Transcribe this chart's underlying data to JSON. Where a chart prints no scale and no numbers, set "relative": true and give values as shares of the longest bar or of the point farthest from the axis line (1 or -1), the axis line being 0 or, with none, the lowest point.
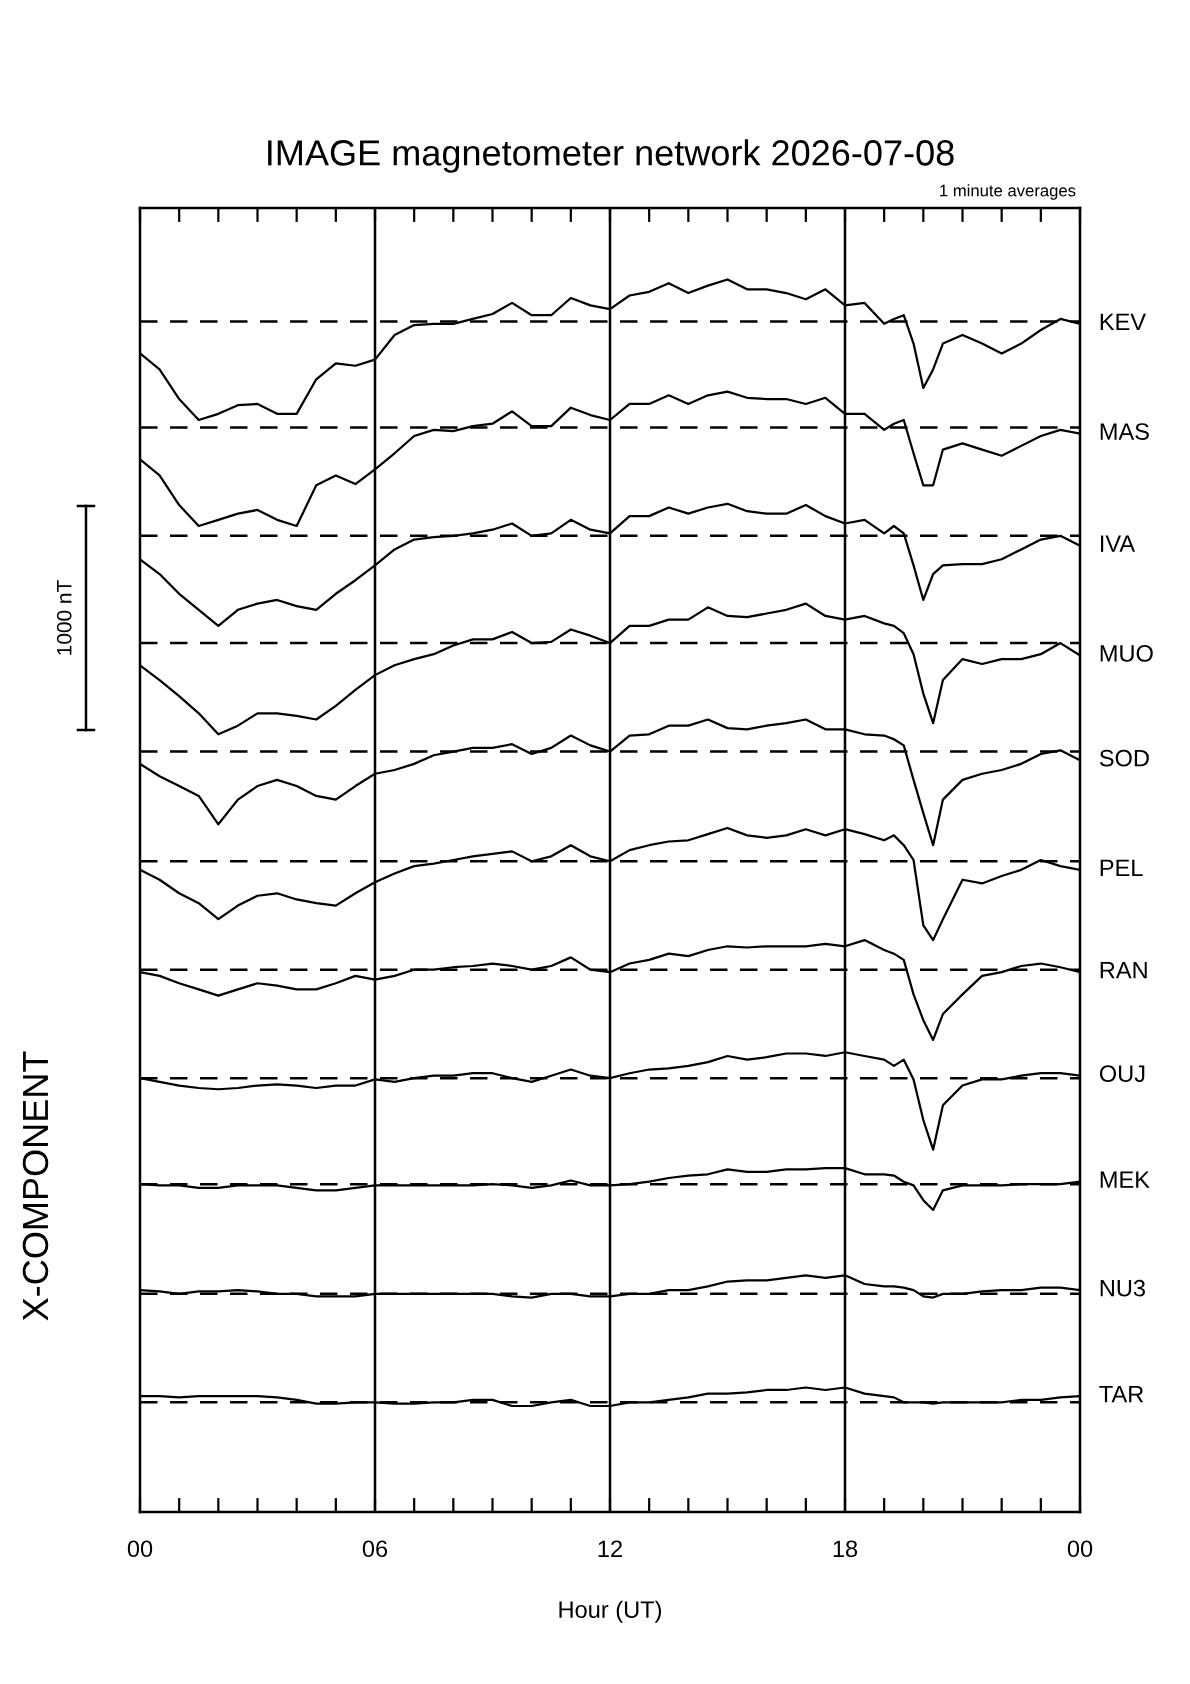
{
  "chart_data": {
    "type": "line",
    "relative": true,
    "title": "IMAGE magnetometer network 2026-07-08",
    "xlabel": "Hour (UT)",
    "ylabel": "X-COMPONENT",
    "annotations": [
      "1 minute averages",
      "1000 nT"
    ],
    "x": [
      0,
      0.5,
      1,
      1.5,
      2,
      2.5,
      3,
      3.5,
      4,
      4.5,
      5,
      5.5,
      6,
      6.5,
      7,
      7.5,
      8,
      8.5,
      9,
      9.5,
      10,
      10.5,
      11,
      11.5,
      12,
      12.5,
      13,
      13.5,
      14,
      14.5,
      15,
      15.5,
      16,
      16.5,
      17,
      17.5,
      18,
      18.5,
      19,
      19.25,
      19.5,
      19.75,
      20,
      20.25,
      20.5,
      21,
      21.5,
      22,
      22.5,
      23,
      23.5,
      24
    ],
    "xlim": [
      0,
      24
    ],
    "xticks": [
      {
        "value": 0,
        "label": "00"
      },
      {
        "value": 1,
        "label": null
      },
      {
        "value": 2,
        "label": null
      },
      {
        "value": 3,
        "label": null
      },
      {
        "value": 4,
        "label": null
      },
      {
        "value": 5,
        "label": null
      },
      {
        "value": 6,
        "label": "06"
      },
      {
        "value": 7,
        "label": null
      },
      {
        "value": 8,
        "label": null
      },
      {
        "value": 9,
        "label": null
      },
      {
        "value": 10,
        "label": null
      },
      {
        "value": 11,
        "label": null
      },
      {
        "value": 12,
        "label": "12"
      },
      {
        "value": 13,
        "label": null
      },
      {
        "value": 14,
        "label": null
      },
      {
        "value": 15,
        "label": null
      },
      {
        "value": 16,
        "label": null
      },
      {
        "value": 17,
        "label": null
      },
      {
        "value": 18,
        "label": "18"
      },
      {
        "value": 19,
        "label": null
      },
      {
        "value": 20,
        "label": null
      },
      {
        "value": 21,
        "label": null
      },
      {
        "value": 22,
        "label": null
      },
      {
        "value": 23,
        "label": null
      },
      {
        "value": 24,
        "label": "00"
      }
    ],
    "tick_labels": "x",
    "grid": false,
    "legend": false,
    "marker": "none",
    "line_style": "solid",
    "series": [
      {
        "name": "KEV",
        "color": "#000000",
        "values": [
          0.94,
          0.927,
          0.903,
          0.886,
          0.891,
          0.898,
          0.899,
          0.891,
          0.891,
          0.919,
          0.932,
          0.93,
          0.935,
          0.955,
          0.963,
          0.964,
          0.964,
          0.968,
          0.972,
          0.981,
          0.971,
          0.971,
          0.985,
          0.979,
          0.976,
          0.987,
          0.99,
          0.997,
          0.989,
          0.995,
          1.0,
          0.992,
          0.992,
          0.989,
          0.984,
          0.992,
          0.979,
          0.981,
          0.964,
          0.968,
          0.971,
          0.948,
          0.912,
          0.927,
          0.948,
          0.955,
          0.948,
          0.94,
          0.948,
          0.959,
          0.968,
          0.964
        ]
      },
      {
        "name": "MAS",
        "color": "#000000",
        "values": [
          0.854,
          0.841,
          0.817,
          0.8,
          0.805,
          0.81,
          0.813,
          0.805,
          0.8,
          0.833,
          0.841,
          0.834,
          0.846,
          0.859,
          0.873,
          0.878,
          0.877,
          0.881,
          0.883,
          0.893,
          0.881,
          0.881,
          0.896,
          0.89,
          0.886,
          0.899,
          0.899,
          0.906,
          0.899,
          0.906,
          0.909,
          0.904,
          0.903,
          0.903,
          0.899,
          0.904,
          0.891,
          0.891,
          0.878,
          0.883,
          0.886,
          0.859,
          0.833,
          0.833,
          0.862,
          0.867,
          0.862,
          0.857,
          0.865,
          0.873,
          0.878,
          0.875
        ]
      },
      {
        "name": "IVA",
        "color": "#000000",
        "values": [
          0.773,
          0.761,
          0.745,
          0.732,
          0.719,
          0.732,
          0.737,
          0.74,
          0.735,
          0.732,
          0.745,
          0.756,
          0.768,
          0.781,
          0.789,
          0.791,
          0.792,
          0.794,
          0.797,
          0.802,
          0.792,
          0.794,
          0.805,
          0.797,
          0.794,
          0.808,
          0.808,
          0.815,
          0.81,
          0.815,
          0.818,
          0.812,
          0.81,
          0.81,
          0.817,
          0.808,
          0.802,
          0.805,
          0.794,
          0.8,
          0.794,
          0.768,
          0.74,
          0.761,
          0.768,
          0.769,
          0.769,
          0.773,
          0.781,
          0.789,
          0.792,
          0.784
        ]
      },
      {
        "name": "MUO",
        "color": "#000000",
        "values": [
          0.687,
          0.675,
          0.662,
          0.648,
          0.631,
          0.638,
          0.648,
          0.648,
          0.646,
          0.643,
          0.654,
          0.667,
          0.679,
          0.687,
          0.692,
          0.696,
          0.703,
          0.708,
          0.708,
          0.714,
          0.705,
          0.706,
          0.716,
          0.711,
          0.705,
          0.719,
          0.719,
          0.724,
          0.724,
          0.734,
          0.727,
          0.726,
          0.729,
          0.732,
          0.737,
          0.727,
          0.724,
          0.727,
          0.721,
          0.719,
          0.713,
          0.696,
          0.664,
          0.64,
          0.675,
          0.692,
          0.688,
          0.692,
          0.692,
          0.696,
          0.705,
          0.695
        ]
      },
      {
        "name": "SOD",
        "color": "#000000",
        "values": [
          0.607,
          0.597,
          0.589,
          0.581,
          0.558,
          0.578,
          0.589,
          0.594,
          0.589,
          0.581,
          0.578,
          0.589,
          0.599,
          0.602,
          0.607,
          0.614,
          0.617,
          0.62,
          0.62,
          0.623,
          0.615,
          0.62,
          0.63,
          0.622,
          0.617,
          0.63,
          0.631,
          0.638,
          0.638,
          0.643,
          0.636,
          0.635,
          0.638,
          0.64,
          0.643,
          0.635,
          0.635,
          0.631,
          0.63,
          0.627,
          0.622,
          0.594,
          0.567,
          0.541,
          0.578,
          0.594,
          0.599,
          0.602,
          0.607,
          0.615,
          0.618,
          0.61
        ]
      },
      {
        "name": "PEL",
        "color": "#000000",
        "values": [
          0.521,
          0.513,
          0.502,
          0.494,
          0.481,
          0.492,
          0.5,
          0.502,
          0.497,
          0.494,
          0.492,
          0.502,
          0.511,
          0.518,
          0.524,
          0.526,
          0.529,
          0.532,
          0.534,
          0.536,
          0.528,
          0.532,
          0.541,
          0.532,
          0.528,
          0.537,
          0.541,
          0.544,
          0.545,
          0.55,
          0.555,
          0.549,
          0.547,
          0.549,
          0.554,
          0.549,
          0.554,
          0.55,
          0.545,
          0.549,
          0.541,
          0.529,
          0.476,
          0.464,
          0.481,
          0.513,
          0.51,
          0.516,
          0.521,
          0.529,
          0.524,
          0.521
        ]
      },
      {
        "name": "RAN",
        "color": "#000000",
        "values": [
          0.438,
          0.435,
          0.429,
          0.424,
          0.419,
          0.424,
          0.429,
          0.427,
          0.424,
          0.424,
          0.429,
          0.435,
          0.432,
          0.435,
          0.44,
          0.44,
          0.442,
          0.443,
          0.445,
          0.443,
          0.44,
          0.443,
          0.45,
          0.44,
          0.438,
          0.445,
          0.448,
          0.453,
          0.451,
          0.456,
          0.459,
          0.458,
          0.459,
          0.459,
          0.459,
          0.461,
          0.459,
          0.464,
          0.456,
          0.453,
          0.448,
          0.42,
          0.399,
          0.383,
          0.404,
          0.42,
          0.435,
          0.438,
          0.443,
          0.445,
          0.442,
          0.438
        ]
      },
      {
        "name": "OUJ",
        "color": "#000000",
        "values": [
          0.352,
          0.349,
          0.346,
          0.344,
          0.343,
          0.344,
          0.346,
          0.347,
          0.346,
          0.344,
          0.346,
          0.346,
          0.351,
          0.349,
          0.352,
          0.354,
          0.354,
          0.356,
          0.356,
          0.352,
          0.349,
          0.354,
          0.359,
          0.354,
          0.352,
          0.356,
          0.359,
          0.36,
          0.362,
          0.365,
          0.37,
          0.367,
          0.369,
          0.372,
          0.372,
          0.37,
          0.373,
          0.37,
          0.367,
          0.362,
          0.367,
          0.351,
          0.318,
          0.294,
          0.33,
          0.346,
          0.351,
          0.351,
          0.354,
          0.356,
          0.356,
          0.354
        ]
      },
      {
        "name": "MEK",
        "color": "#000000",
        "values": [
          0.266,
          0.265,
          0.265,
          0.263,
          0.263,
          0.265,
          0.265,
          0.265,
          0.263,
          0.261,
          0.261,
          0.263,
          0.265,
          0.265,
          0.265,
          0.265,
          0.265,
          0.265,
          0.266,
          0.265,
          0.263,
          0.265,
          0.269,
          0.265,
          0.265,
          0.266,
          0.268,
          0.271,
          0.273,
          0.274,
          0.278,
          0.276,
          0.276,
          0.278,
          0.278,
          0.279,
          0.279,
          0.274,
          0.274,
          0.273,
          0.268,
          0.265,
          0.253,
          0.245,
          0.261,
          0.265,
          0.265,
          0.265,
          0.266,
          0.266,
          0.266,
          0.268
        ]
      },
      {
        "name": "NU3",
        "color": "#000000",
        "values": [
          0.18,
          0.179,
          0.177,
          0.179,
          0.179,
          0.18,
          0.179,
          0.177,
          0.177,
          0.175,
          0.175,
          0.175,
          0.177,
          0.177,
          0.177,
          0.177,
          0.177,
          0.177,
          0.177,
          0.175,
          0.174,
          0.177,
          0.177,
          0.175,
          0.175,
          0.177,
          0.177,
          0.18,
          0.18,
          0.183,
          0.187,
          0.188,
          0.188,
          0.19,
          0.192,
          0.19,
          0.192,
          0.185,
          0.183,
          0.183,
          0.182,
          0.18,
          0.175,
          0.174,
          0.177,
          0.177,
          0.179,
          0.18,
          0.18,
          0.182,
          0.182,
          0.18
        ]
      },
      {
        "name": "TAR",
        "color": "#000000",
        "values": [
          0.094,
          0.094,
          0.093,
          0.094,
          0.094,
          0.094,
          0.094,
          0.093,
          0.091,
          0.088,
          0.088,
          0.089,
          0.089,
          0.088,
          0.088,
          0.089,
          0.089,
          0.091,
          0.091,
          0.086,
          0.086,
          0.089,
          0.091,
          0.086,
          0.086,
          0.089,
          0.089,
          0.091,
          0.093,
          0.096,
          0.096,
          0.097,
          0.099,
          0.099,
          0.101,
          0.099,
          0.101,
          0.096,
          0.094,
          0.093,
          0.089,
          0.089,
          0.089,
          0.088,
          0.089,
          0.089,
          0.089,
          0.089,
          0.091,
          0.091,
          0.093,
          0.094
        ]
      }
    ],
    "ref_lines": [
      {
        "axis": "x",
        "value": 6,
        "color": "#000000",
        "line_style": "solid"
      },
      {
        "axis": "x",
        "value": 12,
        "color": "#000000",
        "line_style": "solid"
      },
      {
        "axis": "x",
        "value": 18,
        "color": "#000000",
        "line_style": "solid"
      },
      {
        "axis": "y",
        "value": 0.966,
        "color": "#000000",
        "line_style": "dashed"
      },
      {
        "axis": "y",
        "value": 0.88,
        "color": "#000000",
        "line_style": "dashed"
      },
      {
        "axis": "y",
        "value": 0.792,
        "color": "#000000",
        "line_style": "dashed"
      },
      {
        "axis": "y",
        "value": 0.705,
        "color": "#000000",
        "line_style": "dashed"
      },
      {
        "axis": "y",
        "value": 0.617,
        "color": "#000000",
        "line_style": "dashed"
      },
      {
        "axis": "y",
        "value": 0.528,
        "color": "#000000",
        "line_style": "dashed"
      },
      {
        "axis": "y",
        "value": 0.44,
        "color": "#000000",
        "line_style": "dashed"
      },
      {
        "axis": "y",
        "value": 0.352,
        "color": "#000000",
        "line_style": "dashed"
      },
      {
        "axis": "y",
        "value": 0.266,
        "color": "#000000",
        "line_style": "dashed"
      },
      {
        "axis": "y",
        "value": 0.177,
        "color": "#000000",
        "line_style": "dashed"
      },
      {
        "axis": "y",
        "value": 0.089,
        "color": "#000000",
        "line_style": "dashed"
      }
    ]
  }
}
